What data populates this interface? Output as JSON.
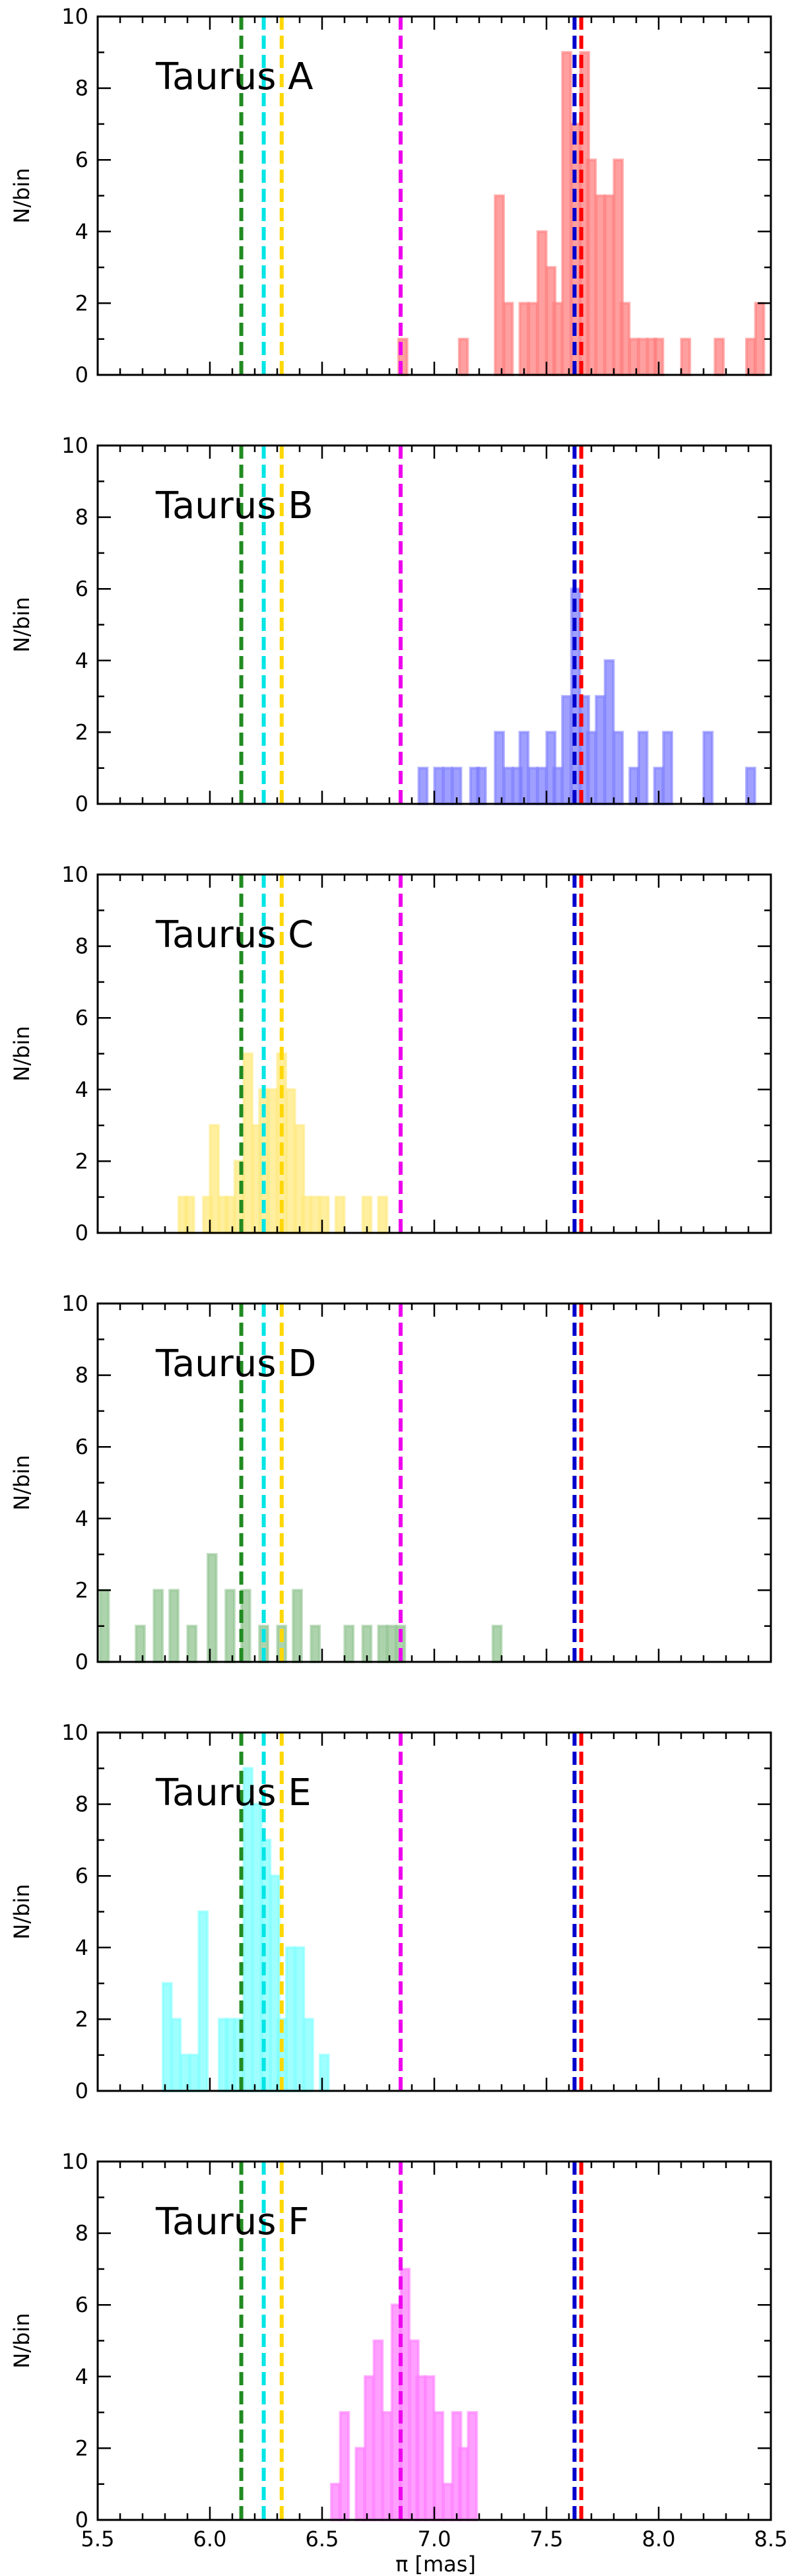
{
  "chart_data": {
    "type": "bar",
    "figure_kind": "stacked histogram panels",
    "xlabel": "π [mas]",
    "ylabel": "N/bin",
    "xlim": [
      5.5,
      8.5
    ],
    "ylim": [
      0,
      10
    ],
    "xticks": [
      "5.5",
      "6.0",
      "6.5",
      "7.0",
      "7.5",
      "8.0",
      "8.5"
    ],
    "yticks": [
      "0",
      "2",
      "4",
      "6",
      "8",
      "10"
    ],
    "bin_width": 0.0375,
    "reference_lines": [
      {
        "name": "Taurus D",
        "x": 6.14,
        "color": "#228b22",
        "style": "dashed"
      },
      {
        "name": "Taurus E",
        "x": 6.24,
        "color": "#00e5e5",
        "style": "dashed"
      },
      {
        "name": "Taurus C",
        "x": 6.32,
        "color": "#ffd700",
        "style": "dashed"
      },
      {
        "name": "Taurus F",
        "x": 6.85,
        "color": "#ee00ee",
        "style": "dashed"
      },
      {
        "name": "Taurus B",
        "x": 7.625,
        "color": "#0000cc",
        "style": "dashed"
      },
      {
        "name": "Taurus A",
        "x": 7.655,
        "color": "#ff0000",
        "style": "dashed"
      }
    ],
    "panels": [
      {
        "title": "Taurus A",
        "color": "#ff7f7f",
        "bins": [
          {
            "x": 6.86,
            "n": 1
          },
          {
            "x": 7.13,
            "n": 1
          },
          {
            "x": 7.29,
            "n": 5
          },
          {
            "x": 7.33,
            "n": 2
          },
          {
            "x": 7.4,
            "n": 2
          },
          {
            "x": 7.44,
            "n": 2
          },
          {
            "x": 7.48,
            "n": 4
          },
          {
            "x": 7.52,
            "n": 3
          },
          {
            "x": 7.55,
            "n": 2
          },
          {
            "x": 7.59,
            "n": 9
          },
          {
            "x": 7.63,
            "n": 7
          },
          {
            "x": 7.67,
            "n": 9
          },
          {
            "x": 7.7,
            "n": 6
          },
          {
            "x": 7.74,
            "n": 5
          },
          {
            "x": 7.78,
            "n": 5
          },
          {
            "x": 7.82,
            "n": 6
          },
          {
            "x": 7.85,
            "n": 2
          },
          {
            "x": 7.89,
            "n": 1
          },
          {
            "x": 7.93,
            "n": 1
          },
          {
            "x": 7.97,
            "n": 1
          },
          {
            "x": 8.0,
            "n": 1
          },
          {
            "x": 8.12,
            "n": 1
          },
          {
            "x": 8.27,
            "n": 1
          },
          {
            "x": 8.41,
            "n": 1
          },
          {
            "x": 8.45,
            "n": 2
          }
        ]
      },
      {
        "title": "Taurus B",
        "color": "#7f7fff",
        "bins": [
          {
            "x": 6.95,
            "n": 1
          },
          {
            "x": 7.02,
            "n": 1
          },
          {
            "x": 7.06,
            "n": 1
          },
          {
            "x": 7.1,
            "n": 1
          },
          {
            "x": 7.18,
            "n": 1
          },
          {
            "x": 7.21,
            "n": 1
          },
          {
            "x": 7.29,
            "n": 2
          },
          {
            "x": 7.33,
            "n": 1
          },
          {
            "x": 7.37,
            "n": 1
          },
          {
            "x": 7.4,
            "n": 2
          },
          {
            "x": 7.44,
            "n": 1
          },
          {
            "x": 7.48,
            "n": 1
          },
          {
            "x": 7.52,
            "n": 2
          },
          {
            "x": 7.55,
            "n": 1
          },
          {
            "x": 7.59,
            "n": 3
          },
          {
            "x": 7.63,
            "n": 6
          },
          {
            "x": 7.67,
            "n": 3
          },
          {
            "x": 7.7,
            "n": 2
          },
          {
            "x": 7.74,
            "n": 3
          },
          {
            "x": 7.78,
            "n": 4
          },
          {
            "x": 7.82,
            "n": 2
          },
          {
            "x": 7.89,
            "n": 1
          },
          {
            "x": 7.93,
            "n": 2
          },
          {
            "x": 8.0,
            "n": 1
          },
          {
            "x": 8.04,
            "n": 2
          },
          {
            "x": 8.22,
            "n": 2
          },
          {
            "x": 8.41,
            "n": 1
          }
        ]
      },
      {
        "title": "Taurus C",
        "color": "#ffea7f",
        "bins": [
          {
            "x": 5.88,
            "n": 1
          },
          {
            "x": 5.91,
            "n": 1
          },
          {
            "x": 5.99,
            "n": 1
          },
          {
            "x": 6.02,
            "n": 3
          },
          {
            "x": 6.06,
            "n": 1
          },
          {
            "x": 6.09,
            "n": 1
          },
          {
            "x": 6.13,
            "n": 2
          },
          {
            "x": 6.17,
            "n": 5
          },
          {
            "x": 6.21,
            "n": 3
          },
          {
            "x": 6.24,
            "n": 4
          },
          {
            "x": 6.28,
            "n": 4
          },
          {
            "x": 6.32,
            "n": 5
          },
          {
            "x": 6.36,
            "n": 4
          },
          {
            "x": 6.4,
            "n": 3
          },
          {
            "x": 6.43,
            "n": 1
          },
          {
            "x": 6.47,
            "n": 1
          },
          {
            "x": 6.51,
            "n": 1
          },
          {
            "x": 6.58,
            "n": 1
          },
          {
            "x": 6.7,
            "n": 1
          },
          {
            "x": 6.77,
            "n": 1
          }
        ]
      },
      {
        "title": "Taurus D",
        "color": "#92c492",
        "bins": [
          {
            "x": 5.53,
            "n": 2
          },
          {
            "x": 5.69,
            "n": 1
          },
          {
            "x": 5.77,
            "n": 2
          },
          {
            "x": 5.84,
            "n": 2
          },
          {
            "x": 5.92,
            "n": 1
          },
          {
            "x": 6.01,
            "n": 3
          },
          {
            "x": 6.09,
            "n": 2
          },
          {
            "x": 6.16,
            "n": 2
          },
          {
            "x": 6.24,
            "n": 1
          },
          {
            "x": 6.32,
            "n": 1
          },
          {
            "x": 6.39,
            "n": 2
          },
          {
            "x": 6.47,
            "n": 1
          },
          {
            "x": 6.62,
            "n": 1
          },
          {
            "x": 6.7,
            "n": 1
          },
          {
            "x": 6.77,
            "n": 1
          },
          {
            "x": 6.81,
            "n": 1
          },
          {
            "x": 6.85,
            "n": 1
          },
          {
            "x": 7.28,
            "n": 1
          }
        ]
      },
      {
        "title": "Taurus E",
        "color": "#7fffff",
        "bins": [
          {
            "x": 5.81,
            "n": 3
          },
          {
            "x": 5.85,
            "n": 2
          },
          {
            "x": 5.89,
            "n": 1
          },
          {
            "x": 5.93,
            "n": 1
          },
          {
            "x": 5.97,
            "n": 5
          },
          {
            "x": 6.06,
            "n": 2
          },
          {
            "x": 6.09,
            "n": 2
          },
          {
            "x": 6.13,
            "n": 2
          },
          {
            "x": 6.17,
            "n": 9
          },
          {
            "x": 6.21,
            "n": 8
          },
          {
            "x": 6.25,
            "n": 7
          },
          {
            "x": 6.29,
            "n": 6
          },
          {
            "x": 6.32,
            "n": 2
          },
          {
            "x": 6.36,
            "n": 4
          },
          {
            "x": 6.4,
            "n": 4
          },
          {
            "x": 6.44,
            "n": 2
          },
          {
            "x": 6.51,
            "n": 1
          }
        ]
      },
      {
        "title": "Taurus F",
        "color": "#ff7fff",
        "bins": [
          {
            "x": 6.56,
            "n": 1
          },
          {
            "x": 6.6,
            "n": 3
          },
          {
            "x": 6.67,
            "n": 2
          },
          {
            "x": 6.71,
            "n": 4
          },
          {
            "x": 6.75,
            "n": 5
          },
          {
            "x": 6.79,
            "n": 3
          },
          {
            "x": 6.83,
            "n": 6
          },
          {
            "x": 6.87,
            "n": 7
          },
          {
            "x": 6.91,
            "n": 5
          },
          {
            "x": 6.94,
            "n": 4
          },
          {
            "x": 6.98,
            "n": 4
          },
          {
            "x": 7.02,
            "n": 3
          },
          {
            "x": 7.06,
            "n": 1
          },
          {
            "x": 7.1,
            "n": 3
          },
          {
            "x": 7.13,
            "n": 2
          },
          {
            "x": 7.17,
            "n": 3
          }
        ]
      }
    ]
  }
}
